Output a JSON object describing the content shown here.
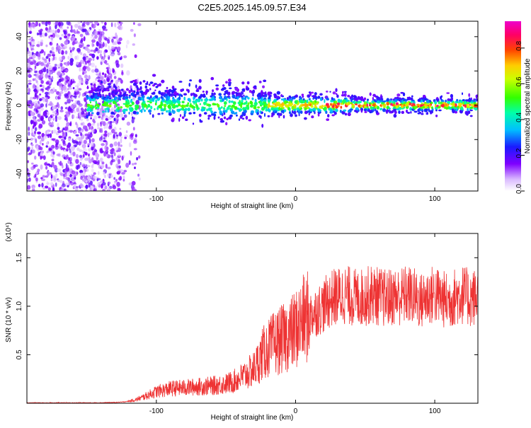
{
  "title": "C2E5.2025.145.09.57.E34",
  "chart_data": [
    {
      "type": "heatmap",
      "xlabel": "Height of straight line (km)",
      "ylabel": "Frequency (Hz)",
      "xlim": [
        -193,
        131
      ],
      "ylim": [
        -50,
        49
      ],
      "xticks": [
        -100,
        0,
        100
      ],
      "yticks": [
        -40,
        -20,
        0,
        20,
        40
      ],
      "colorbar": {
        "label": "Normalized spectral amplitude",
        "range": [
          0.0,
          0.95
        ],
        "ticks": [
          "0.0",
          "0.2",
          "0.4",
          "0.6",
          "0.8"
        ]
      }
    },
    {
      "type": "line",
      "xlabel": "Height of straight line (km)",
      "ylabel": "SNR (10 * v/v)",
      "multiplier": "(x10⁴)",
      "xlim": [
        -193,
        131
      ],
      "ylim": [
        0,
        1.75
      ],
      "xticks": [
        -100,
        0,
        100
      ],
      "yticks": [
        "0.5",
        "1.0",
        "1.5"
      ],
      "color": "#ee3333",
      "series": [
        {
          "x": [
            -193,
            -170,
            -150,
            -140,
            -130,
            -125,
            -120,
            -115,
            -110,
            -105,
            -100,
            -90,
            -80,
            -70,
            -60,
            -50,
            -45,
            -40,
            -35,
            -30,
            -27,
            -24,
            -21,
            -18,
            -15,
            -12,
            -9,
            -6,
            -3,
            0,
            5,
            10,
            15,
            20,
            23,
            26,
            30,
            35,
            40,
            45,
            50,
            55,
            60,
            65,
            70,
            75,
            80,
            85,
            90,
            95,
            100,
            105,
            110,
            115,
            120,
            125,
            131
          ],
          "values": [
            0.003,
            0.003,
            0.004,
            0.005,
            0.008,
            0.012,
            0.02,
            0.035,
            0.06,
            0.09,
            0.12,
            0.15,
            0.16,
            0.17,
            0.18,
            0.2,
            0.22,
            0.26,
            0.3,
            0.35,
            0.42,
            0.5,
            0.55,
            0.58,
            0.62,
            0.64,
            0.66,
            0.7,
            0.72,
            0.76,
            0.85,
            0.9,
            0.95,
            1.0,
            1.05,
            1.08,
            1.1,
            1.12,
            1.1,
            1.08,
            1.1,
            1.12,
            1.1,
            1.08,
            1.1,
            1.1,
            1.12,
            1.1,
            1.05,
            1.1,
            1.12,
            1.08,
            1.05,
            1.1,
            1.12,
            1.08,
            1.1
          ]
        }
      ]
    }
  ]
}
